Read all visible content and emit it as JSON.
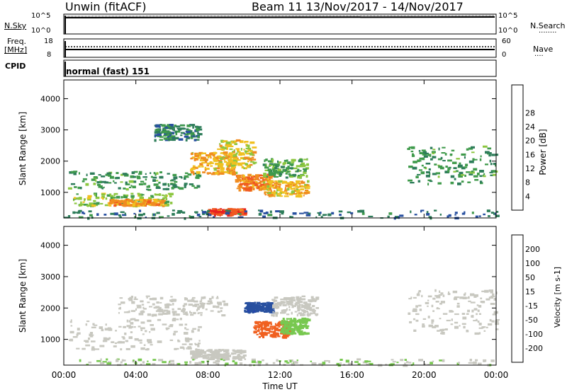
{
  "header": {
    "station": "Unwin (fitACF)",
    "beam_date": "Beam 11   13/Nov/2017 - 14/Nov/2017"
  },
  "noise_panel": {
    "left_label": "N.Sky",
    "right_label": "N.Search",
    "ytick_top": "10^5",
    "ytick_bottom": "10^0"
  },
  "freq_panel": {
    "left_label_1": "Freq.",
    "left_label_2": "[MHz]",
    "right_label": "Nave",
    "ytick_left_top": "18",
    "ytick_left_bottom": "8",
    "ytick_right_top": "60",
    "ytick_right_bottom": "0"
  },
  "cpid_panel": {
    "label": "CPID",
    "value": "normal (fast) 151"
  },
  "xaxis": {
    "label": "Time UT",
    "ticks": [
      "00:00",
      "04:00",
      "08:00",
      "12:00",
      "16:00",
      "20:00",
      "00:00"
    ]
  },
  "colors": {
    "power_scale": [
      "#1e1edc",
      "#2850a0",
      "#2e7d5a",
      "#3f9a4b",
      "#8cc63f",
      "#f0c020",
      "#f08c20",
      "#f05a20",
      "#e82020"
    ],
    "velocity_scale": [
      "#1e1edc",
      "#2850a0",
      "#3a8a50",
      "#78c850",
      "#c8c8c0",
      "#c8c8c0",
      "#f0a020",
      "#f06020",
      "#e82020"
    ]
  },
  "chart_data": [
    {
      "type": "heatmap",
      "title": "",
      "xlabel": "",
      "ylabel": "Slant Range [km]",
      "xlim": [
        0,
        24
      ],
      "ylim": [
        180,
        4600
      ],
      "yticks": [
        1000,
        2000,
        3000,
        4000
      ],
      "colorbar_label": "Power [dB]",
      "colorbar_ticks": [
        "4",
        "8",
        "12",
        "16",
        "20",
        "24",
        "28"
      ],
      "colorbar_range": [
        0,
        30
      ],
      "regions": [
        {
          "t0": 0.2,
          "t1": 7.5,
          "r0": 1100,
          "r1": 1700,
          "level": 10
        },
        {
          "t0": 0.5,
          "t1": 6.0,
          "r0": 600,
          "r1": 1000,
          "level": 14
        },
        {
          "t0": 2.5,
          "t1": 5.5,
          "r0": 600,
          "r1": 800,
          "level": 22
        },
        {
          "t0": 7.0,
          "t1": 9.5,
          "r0": 1600,
          "r1": 2300,
          "level": 20
        },
        {
          "t0": 8.5,
          "t1": 10.5,
          "r0": 1800,
          "r1": 2700,
          "level": 18
        },
        {
          "t0": 9.5,
          "t1": 11.5,
          "r0": 1100,
          "r1": 1600,
          "level": 24
        },
        {
          "t0": 8.0,
          "t1": 10.0,
          "r0": 300,
          "r1": 500,
          "level": 28
        },
        {
          "t0": 11.0,
          "t1": 13.5,
          "r0": 900,
          "r1": 1400,
          "level": 20
        },
        {
          "t0": 5.0,
          "t1": 7.5,
          "r0": 2700,
          "r1": 3200,
          "level": 8
        },
        {
          "t0": 11.0,
          "t1": 13.5,
          "r0": 1500,
          "r1": 2100,
          "level": 12
        },
        {
          "t0": 19.0,
          "t1": 24.0,
          "r0": 1300,
          "r1": 2500,
          "level": 10
        },
        {
          "t0": 0.0,
          "t1": 24.0,
          "r0": 200,
          "r1": 450,
          "level": 6
        }
      ]
    },
    {
      "type": "heatmap",
      "title": "",
      "xlabel": "Time UT",
      "ylabel": "Slant Range [km]",
      "xlim": [
        0,
        24
      ],
      "ylim": [
        180,
        4600
      ],
      "yticks": [
        1000,
        2000,
        3000,
        4000
      ],
      "colorbar_label": "Velocity [m s-1]",
      "colorbar_ticks": [
        "200",
        "100",
        "50",
        "15",
        "-15",
        "-50",
        "-100",
        "-200"
      ],
      "colorbar_range": [
        -250,
        250
      ],
      "regions": [
        {
          "t0": 0.2,
          "t1": 7.5,
          "r0": 700,
          "r1": 1700,
          "level": 0
        },
        {
          "t0": 3.0,
          "t1": 9.0,
          "r0": 1800,
          "r1": 2400,
          "level": 0
        },
        {
          "t0": 7.0,
          "t1": 10.0,
          "r0": 400,
          "r1": 700,
          "level": -60
        },
        {
          "t0": 10.5,
          "t1": 12.5,
          "r0": 1100,
          "r1": 1600,
          "level": -180
        },
        {
          "t0": 12.0,
          "t1": 13.5,
          "r0": 1200,
          "r1": 1700,
          "level": 60
        },
        {
          "t0": 10.0,
          "t1": 11.5,
          "r0": 1900,
          "r1": 2200,
          "level": 200
        },
        {
          "t0": 11.5,
          "t1": 14.0,
          "r0": 1800,
          "r1": 2400,
          "level": 0
        },
        {
          "t0": 19.0,
          "t1": 24.0,
          "r0": 1200,
          "r1": 2600,
          "level": 0
        },
        {
          "t0": 0.0,
          "t1": 24.0,
          "r0": 200,
          "r1": 400,
          "level": 30
        }
      ]
    }
  ]
}
